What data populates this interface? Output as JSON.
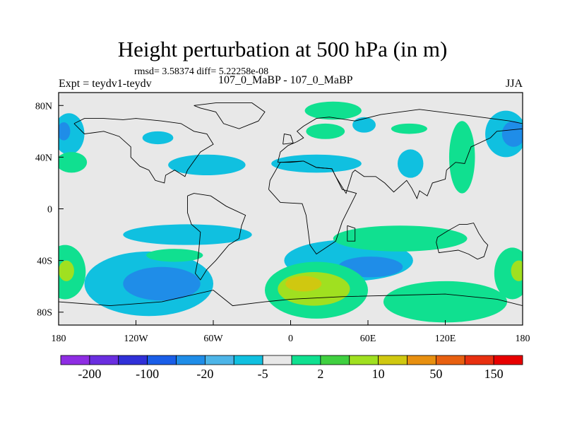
{
  "chart_data": {
    "type": "heatmap",
    "title": "Height perturbation at 500 hPa (in m)",
    "stats_line": "rmsd= 3.58374 diff= 5.22258e-08",
    "left_label": "Expt = teydv1-teydv",
    "center_label": "107_0_MaBP - 107_0_MaBP",
    "right_label": "JJA",
    "xlim": [
      -180,
      180
    ],
    "ylim": [
      -90,
      90
    ],
    "x_ticks": [
      {
        "value": -180,
        "label": "180"
      },
      {
        "value": -120,
        "label": "120W"
      },
      {
        "value": -60,
        "label": "60W"
      },
      {
        "value": 0,
        "label": "0"
      },
      {
        "value": 60,
        "label": "60E"
      },
      {
        "value": 120,
        "label": "120E"
      },
      {
        "value": 180,
        "label": "180"
      }
    ],
    "y_ticks": [
      {
        "value": 80,
        "label": "80N"
      },
      {
        "value": 40,
        "label": "40N"
      },
      {
        "value": 0,
        "label": "0"
      },
      {
        "value": -40,
        "label": "40S"
      },
      {
        "value": -80,
        "label": "80S"
      }
    ],
    "colorbar": {
      "colors": [
        "#8e2de3",
        "#6a2ee0",
        "#3030d8",
        "#1a5ee8",
        "#1f8de8",
        "#4db5e8",
        "#10c0e0",
        "#e8e8e8",
        "#10e090",
        "#40d040",
        "#a0e020",
        "#d0c810",
        "#e89010",
        "#e86010",
        "#e83010",
        "#e80000"
      ],
      "labels": [
        {
          "after_box": 1,
          "text": "-200"
        },
        {
          "after_box": 3,
          "text": "-100"
        },
        {
          "after_box": 5,
          "text": "-20"
        },
        {
          "after_box": 7,
          "text": "-5"
        },
        {
          "after_box": 9,
          "text": "2"
        },
        {
          "after_box": 11,
          "text": "10"
        },
        {
          "after_box": 13,
          "text": "50"
        },
        {
          "after_box": 15,
          "text": "150"
        }
      ]
    },
    "regions": [
      {
        "level": "light-blue",
        "color": "#10c0e0",
        "lon": -172,
        "lat": 58,
        "rlon": 12,
        "rlat": 16
      },
      {
        "level": "mid-blue",
        "color": "#1f8de8",
        "lon": -176,
        "lat": 60,
        "rlon": 5,
        "rlat": 7
      },
      {
        "level": "green",
        "color": "#10e090",
        "lon": -170,
        "lat": 36,
        "rlon": 12,
        "rlat": 8
      },
      {
        "level": "light-blue",
        "color": "#10c0e0",
        "lon": -103,
        "lat": 55,
        "rlon": 12,
        "rlat": 5
      },
      {
        "level": "light-blue",
        "color": "#10c0e0",
        "lon": -65,
        "lat": 34,
        "rlon": 30,
        "rlat": 8
      },
      {
        "level": "green",
        "color": "#10e090",
        "lon": 33,
        "lat": 76,
        "rlon": 22,
        "rlat": 7
      },
      {
        "level": "green",
        "color": "#10e090",
        "lon": 27,
        "lat": 60,
        "rlon": 15,
        "rlat": 6
      },
      {
        "level": "light-blue",
        "color": "#10c0e0",
        "lon": 57,
        "lat": 65,
        "rlon": 9,
        "rlat": 6
      },
      {
        "level": "green",
        "color": "#10e090",
        "lon": 92,
        "lat": 62,
        "rlon": 14,
        "rlat": 4
      },
      {
        "level": "light-blue",
        "color": "#10c0e0",
        "lon": 20,
        "lat": 35,
        "rlon": 35,
        "rlat": 7
      },
      {
        "level": "light-blue",
        "color": "#10c0e0",
        "lon": 93,
        "lat": 35,
        "rlon": 10,
        "rlat": 11
      },
      {
        "level": "green",
        "color": "#10e090",
        "lon": 133,
        "lat": 40,
        "rlon": 10,
        "rlat": 28
      },
      {
        "level": "light-blue",
        "color": "#10c0e0",
        "lon": 167,
        "lat": 58,
        "rlon": 16,
        "rlat": 18
      },
      {
        "level": "mid-blue",
        "color": "#1f8de8",
        "lon": 173,
        "lat": 58,
        "rlon": 9,
        "rlat": 10
      },
      {
        "level": "light-blue",
        "color": "#10c0e0",
        "lon": -80,
        "lat": -20,
        "rlon": 50,
        "rlat": 8
      },
      {
        "level": "green",
        "color": "#10e090",
        "lon": -175,
        "lat": -49,
        "rlon": 16,
        "rlat": 21
      },
      {
        "level": "lime",
        "color": "#a0e020",
        "lon": -174,
        "lat": -48,
        "rlon": 6,
        "rlat": 8
      },
      {
        "level": "light-blue",
        "color": "#10c0e0",
        "lon": -110,
        "lat": -58,
        "rlon": 50,
        "rlat": 25
      },
      {
        "level": "mid-blue",
        "color": "#1f8de8",
        "lon": -100,
        "lat": -58,
        "rlon": 30,
        "rlat": 13
      },
      {
        "level": "green",
        "color": "#10e090",
        "lon": -90,
        "lat": -36,
        "rlon": 22,
        "rlat": 5
      },
      {
        "level": "light-blue",
        "color": "#10c0e0",
        "lon": 45,
        "lat": -40,
        "rlon": 50,
        "rlat": 16
      },
      {
        "level": "mid-blue",
        "color": "#1f8de8",
        "lon": 62,
        "lat": -45,
        "rlon": 25,
        "rlat": 8
      },
      {
        "level": "green",
        "color": "#10e090",
        "lon": 85,
        "lat": -23,
        "rlon": 52,
        "rlat": 10
      },
      {
        "level": "green",
        "color": "#10e090",
        "lon": 20,
        "lat": -63,
        "rlon": 40,
        "rlat": 22
      },
      {
        "level": "lime",
        "color": "#a0e020",
        "lon": 18,
        "lat": -62,
        "rlon": 28,
        "rlat": 13
      },
      {
        "level": "yellow",
        "color": "#d0c810",
        "lon": 10,
        "lat": -58,
        "rlon": 14,
        "rlat": 6
      },
      {
        "level": "green",
        "color": "#10e090",
        "lon": 120,
        "lat": -72,
        "rlon": 48,
        "rlat": 16
      },
      {
        "level": "green",
        "color": "#10e090",
        "lon": 172,
        "lat": -50,
        "rlon": 14,
        "rlat": 20
      },
      {
        "level": "lime",
        "color": "#a0e020",
        "lon": 177,
        "lat": -48,
        "rlon": 6,
        "rlat": 8
      }
    ],
    "outlines": [
      [
        [
          -168,
          66
        ],
        [
          -160,
          70
        ],
        [
          -145,
          70
        ],
        [
          -130,
          69
        ],
        [
          -120,
          70
        ],
        [
          -100,
          68
        ],
        [
          -85,
          66
        ],
        [
          -75,
          60
        ],
        [
          -65,
          58
        ],
        [
          -60,
          50
        ],
        [
          -70,
          44
        ],
        [
          -80,
          30
        ],
        [
          -82,
          25
        ],
        [
          -90,
          30
        ],
        [
          -97,
          26
        ],
        [
          -98,
          20
        ],
        [
          -105,
          22
        ],
        [
          -110,
          30
        ],
        [
          -117,
          33
        ],
        [
          -124,
          40
        ],
        [
          -124,
          48
        ],
        [
          -133,
          56
        ],
        [
          -145,
          60
        ],
        [
          -160,
          58
        ],
        [
          -168,
          66
        ]
      ],
      [
        [
          -75,
          80
        ],
        [
          -58,
          82
        ],
        [
          -30,
          82
        ],
        [
          -20,
          75
        ],
        [
          -25,
          68
        ],
        [
          -40,
          62
        ],
        [
          -52,
          66
        ],
        [
          -58,
          75
        ],
        [
          -70,
          78
        ],
        [
          -75,
          80
        ]
      ],
      [
        [
          -80,
          10
        ],
        [
          -75,
          12
        ],
        [
          -62,
          10
        ],
        [
          -50,
          2
        ],
        [
          -35,
          -5
        ],
        [
          -38,
          -13
        ],
        [
          -40,
          -23
        ],
        [
          -48,
          -28
        ],
        [
          -53,
          -34
        ],
        [
          -58,
          -40
        ],
        [
          -65,
          -47
        ],
        [
          -70,
          -55
        ],
        [
          -74,
          -50
        ],
        [
          -72,
          -40
        ],
        [
          -71,
          -30
        ],
        [
          -70,
          -18
        ],
        [
          -77,
          -12
        ],
        [
          -80,
          -3
        ],
        [
          -80,
          10
        ]
      ],
      [
        [
          -10,
          36
        ],
        [
          -8,
          44
        ],
        [
          -2,
          49
        ],
        [
          5,
          52
        ],
        [
          10,
          55
        ],
        [
          5,
          60
        ],
        [
          10,
          64
        ],
        [
          20,
          70
        ],
        [
          30,
          71
        ],
        [
          50,
          68
        ],
        [
          70,
          73
        ],
        [
          100,
          77
        ],
        [
          140,
          72
        ],
        [
          170,
          68
        ],
        [
          180,
          66
        ],
        [
          180,
          62
        ],
        [
          160,
          60
        ],
        [
          155,
          55
        ],
        [
          140,
          48
        ],
        [
          135,
          35
        ],
        [
          128,
          36
        ],
        [
          121,
          30
        ],
        [
          120,
          23
        ],
        [
          110,
          20
        ],
        [
          106,
          10
        ],
        [
          100,
          14
        ],
        [
          98,
          8
        ],
        [
          94,
          16
        ],
        [
          90,
          22
        ],
        [
          80,
          13
        ],
        [
          73,
          20
        ],
        [
          66,
          25
        ],
        [
          57,
          25
        ],
        [
          50,
          30
        ],
        [
          48,
          28
        ],
        [
          43,
          12
        ],
        [
          35,
          25
        ],
        [
          32,
          31
        ],
        [
          20,
          32
        ],
        [
          10,
          37
        ],
        [
          0,
          36
        ],
        [
          -10,
          36
        ]
      ],
      [
        [
          -17,
          15
        ],
        [
          -16,
          22
        ],
        [
          -8,
          36
        ],
        [
          10,
          37
        ],
        [
          20,
          32
        ],
        [
          32,
          31
        ],
        [
          40,
          15
        ],
        [
          51,
          12
        ],
        [
          40,
          -10
        ],
        [
          35,
          -25
        ],
        [
          20,
          -35
        ],
        [
          15,
          -28
        ],
        [
          12,
          -5
        ],
        [
          9,
          4
        ],
        [
          -8,
          5
        ],
        [
          -17,
          15
        ]
      ],
      [
        [
          114,
          -22
        ],
        [
          122,
          -17
        ],
        [
          131,
          -12
        ],
        [
          137,
          -12
        ],
        [
          142,
          -11
        ],
        [
          146,
          -19
        ],
        [
          150,
          -25
        ],
        [
          153,
          -28
        ],
        [
          150,
          -37
        ],
        [
          145,
          -39
        ],
        [
          138,
          -35
        ],
        [
          130,
          -32
        ],
        [
          115,
          -34
        ],
        [
          113,
          -26
        ],
        [
          114,
          -22
        ]
      ],
      [
        [
          -180,
          -72
        ],
        [
          -140,
          -75
        ],
        [
          -100,
          -72
        ],
        [
          -60,
          -63
        ],
        [
          -45,
          -75
        ],
        [
          -20,
          -72
        ],
        [
          0,
          -70
        ],
        [
          40,
          -68
        ],
        [
          80,
          -67
        ],
        [
          120,
          -66
        ],
        [
          160,
          -70
        ],
        [
          180,
          -75
        ]
      ],
      [
        [
          44,
          -13
        ],
        [
          50,
          -15
        ],
        [
          50,
          -25
        ],
        [
          44,
          -25
        ],
        [
          44,
          -13
        ]
      ],
      [
        [
          -6,
          50
        ],
        [
          2,
          51
        ],
        [
          0,
          57
        ],
        [
          -5,
          58
        ],
        [
          -6,
          50
        ]
      ]
    ]
  }
}
